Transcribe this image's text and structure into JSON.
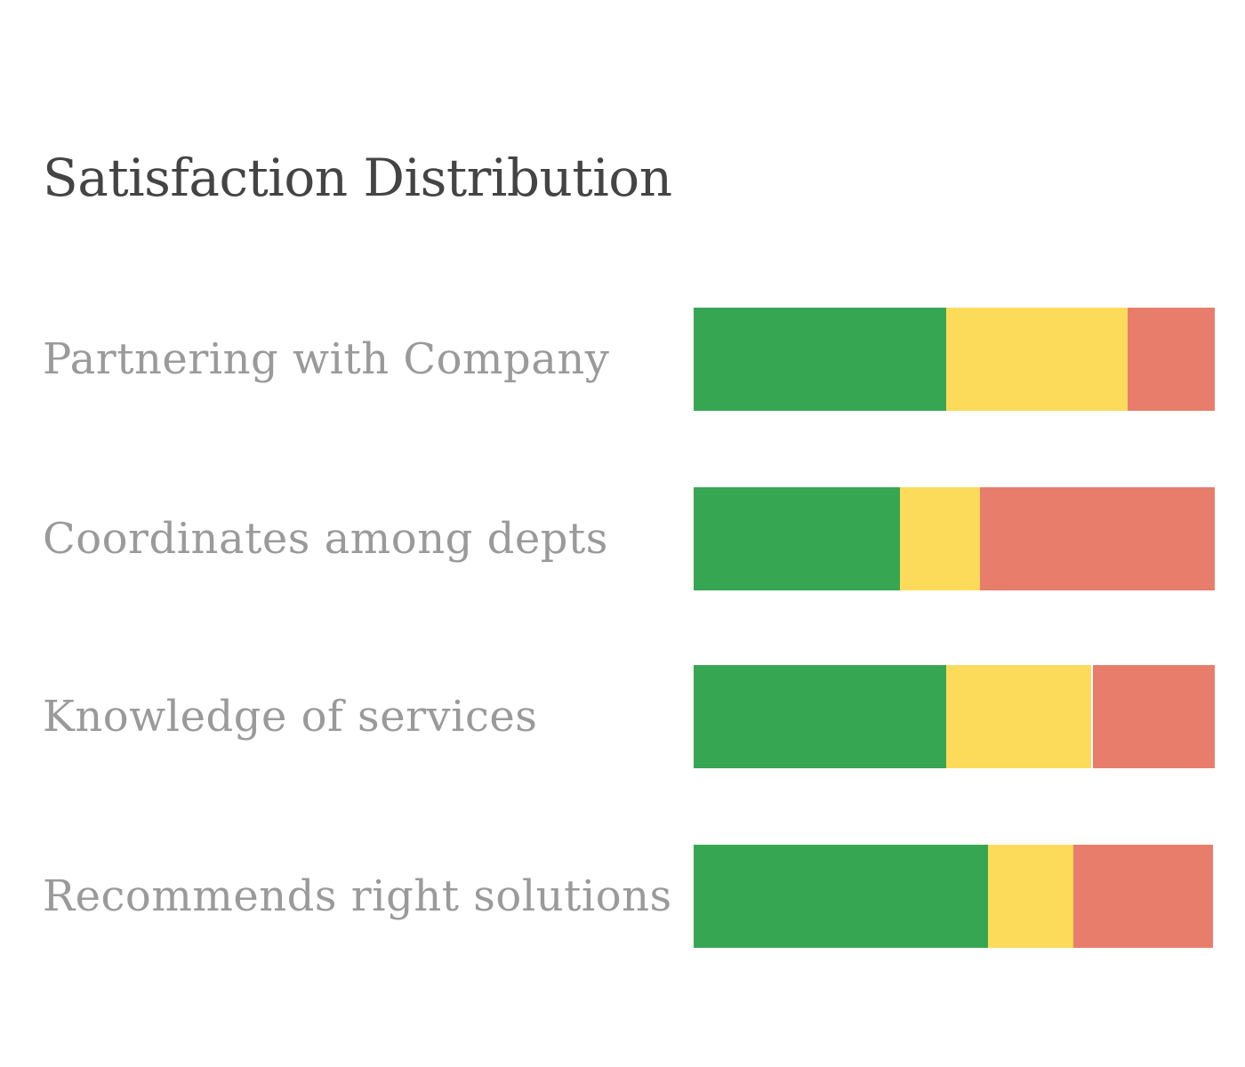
{
  "chart_data": {
    "type": "bar",
    "orientation": "horizontal",
    "stacked": true,
    "title": "Satisfaction Distribution",
    "categories": [
      "Partnering with Company",
      "Coordinates among depts",
      "Knowledge of services",
      "Recommends right solutions"
    ],
    "series": [
      {
        "color": "#37a653",
        "values": [
          48.5,
          39.6,
          48.5,
          56.7
        ]
      },
      {
        "color": "#fddb5a",
        "values": [
          34.8,
          15.4,
          28.2,
          16.4
        ]
      },
      {
        "color": "#e87d6c",
        "values": [
          16.7,
          45.0,
          23.3,
          26.9
        ]
      }
    ],
    "xlim": [
      0,
      100
    ],
    "grid": false,
    "legend": "none"
  }
}
